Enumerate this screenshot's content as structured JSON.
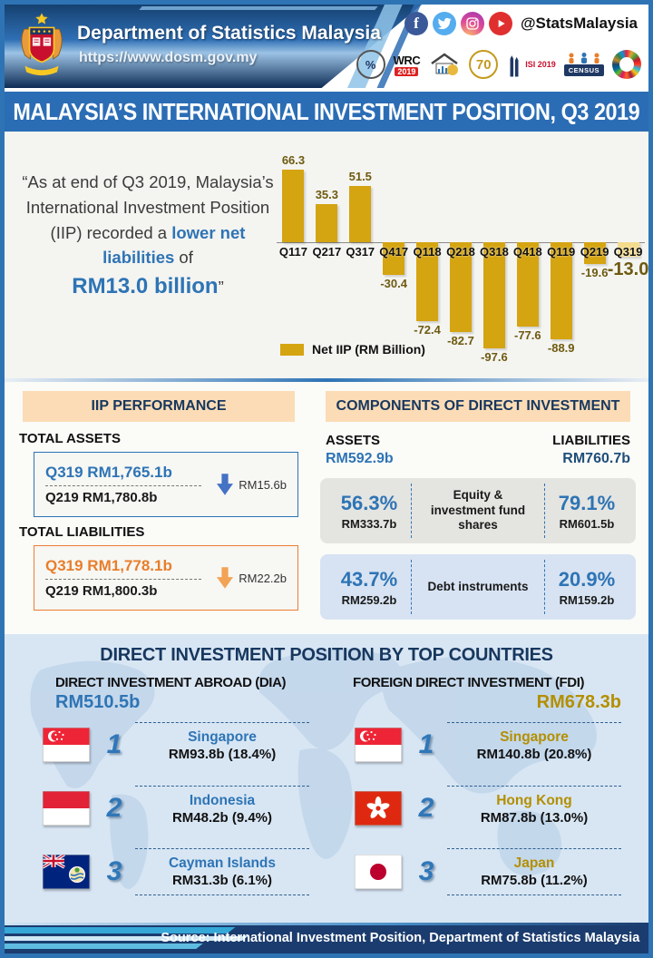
{
  "header": {
    "org_name": "Department of Statistics Malaysia",
    "website": "https://www.dosm.gov.my",
    "social_handle": "@StatsMalaysia",
    "logos": {
      "stats_day": "%",
      "wrc": "WRC",
      "wrc_year": "2019",
      "anniversary": "70",
      "isi": "ISI 2019",
      "census": "CENSUS"
    }
  },
  "title_bar": "MALAYSIA’S INTERNATIONAL INVESTMENT POSITION, Q3 2019",
  "quote": {
    "part1": "“As at end of Q3 2019, Malaysia’s International Investment Position (IIP)  recorded a ",
    "highlight": "lower net liabilities",
    "part2": " of",
    "amount": "RM13.0 billion",
    "closing": "”"
  },
  "chart_data": {
    "type": "bar",
    "title": "",
    "categories": [
      "Q117",
      "Q217",
      "Q317",
      "Q417",
      "Q118",
      "Q218",
      "Q318",
      "Q418",
      "Q119",
      "Q219",
      "Q319"
    ],
    "values": [
      66.3,
      35.3,
      51.5,
      -30.4,
      -72.4,
      -82.7,
      -97.6,
      -77.6,
      -88.9,
      -19.6,
      -13.0
    ],
    "legend": "Net IIP (RM Billion)",
    "legend_position": "bottom-left",
    "highlight_index": 10,
    "bar_color": "#D5A411",
    "highlight_color": "#F4DC8C",
    "label_color": "#6E5A10",
    "ylim": [
      -110,
      80
    ],
    "grid": false
  },
  "iip_performance": {
    "header": "IIP PERFORMANCE",
    "total_assets": {
      "label": "TOTAL ASSETS",
      "current": "Q319 RM1,765.1b",
      "previous": "Q219  RM1,780.8b",
      "change": "RM15.6b"
    },
    "total_liabilities": {
      "label": "TOTAL LIABILITIES",
      "current": "Q319 RM1,778.1b",
      "previous": "Q219  RM1,800.3b",
      "change": "RM22.2b"
    }
  },
  "components": {
    "header": "COMPONENTS OF DIRECT INVESTMENT",
    "assets_label": "ASSETS",
    "assets_total": "RM592.9b",
    "liabilities_label": "LIABILITIES",
    "liabilities_total": "RM760.7b",
    "rows": [
      {
        "component": "Equity & investment fund shares",
        "assets_pct": "56.3%",
        "assets_value": "RM333.7b",
        "liabilities_pct": "79.1%",
        "liabilities_value": "RM601.5b"
      },
      {
        "component": "Debt instruments",
        "assets_pct": "43.7%",
        "assets_value": "RM259.2b",
        "liabilities_pct": "20.9%",
        "liabilities_value": "RM159.2b"
      }
    ]
  },
  "top_countries": {
    "header": "DIRECT INVESTMENT POSITION BY TOP COUNTRIES",
    "dia": {
      "label": "DIRECT INVESTMENT ABROAD (DIA)",
      "total": "RM510.5b",
      "items": [
        {
          "rank": "1",
          "country": "Singapore",
          "value": "RM93.8b (18.4%)"
        },
        {
          "rank": "2",
          "country": "Indonesia",
          "value": "RM48.2b (9.4%)"
        },
        {
          "rank": "3",
          "country": "Cayman Islands",
          "value": "RM31.3b (6.1%)"
        }
      ]
    },
    "fdi": {
      "label": "FOREIGN DIRECT INVESTMENT (FDI)",
      "total": "RM678.3b",
      "items": [
        {
          "rank": "1",
          "country": "Singapore",
          "value": "RM140.8b (20.8%)"
        },
        {
          "rank": "2",
          "country": "Hong Kong",
          "value": "RM87.8b (13.0%)"
        },
        {
          "rank": "3",
          "country": "Japan",
          "value": "RM75.8b (11.2%)"
        }
      ]
    }
  },
  "footer": {
    "source": "Source:  International Investment Position,  Department of Statistics Malaysia"
  }
}
